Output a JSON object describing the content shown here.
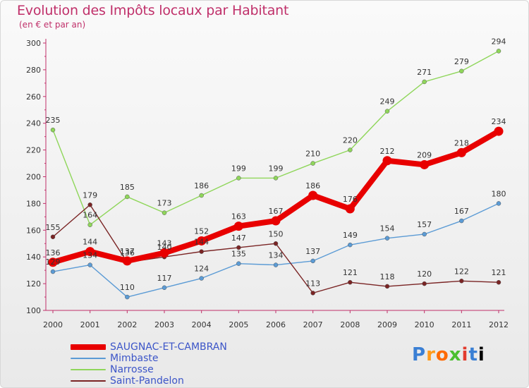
{
  "title": "Evolution des Impôts locaux par Habitant",
  "subtitle": "(en € et par an)",
  "logo": [
    "P",
    "r",
    "o",
    "x",
    "i",
    "t",
    "i"
  ],
  "chart_data": {
    "type": "line",
    "x": [
      "2000",
      "2001",
      "2002",
      "2003",
      "2004",
      "2005",
      "2006",
      "2007",
      "2008",
      "2009",
      "2010",
      "2011",
      "2012"
    ],
    "ylim": [
      100,
      300
    ],
    "yticks": [
      100,
      120,
      140,
      160,
      180,
      200,
      220,
      240,
      260,
      280,
      300
    ],
    "grid": false,
    "legend_position": "bottom-left",
    "series": [
      {
        "name": "Mimbaste",
        "color": "#5b9bd5",
        "values": [
          129,
          134,
          110,
          117,
          124,
          135,
          134,
          137,
          149,
          154,
          157,
          167,
          180
        ],
        "labels": [
          "129",
          "134",
          "110",
          "117",
          "124",
          "135",
          "134",
          "137",
          "149",
          "154",
          "157",
          "167",
          "180"
        ]
      },
      {
        "name": "Narrosse",
        "color": "#8fd65a",
        "values": [
          235,
          164,
          185,
          173,
          186,
          199,
          199,
          210,
          220,
          249,
          271,
          279,
          294
        ],
        "labels": [
          "235",
          "164",
          "185",
          "173",
          "186",
          "199",
          "199",
          "210",
          "220",
          "249",
          "271",
          "279",
          "294"
        ]
      },
      {
        "name": "Saint-Pandelon",
        "color": "#7a2424",
        "values": [
          155,
          179,
          136,
          140,
          144,
          147,
          150,
          113,
          121,
          118,
          120,
          122,
          121
        ],
        "labels": [
          "155",
          "179",
          "136",
          "140",
          "144",
          "147",
          "150",
          "113",
          "121",
          "118",
          "120",
          "122",
          "121"
        ]
      },
      {
        "name": "SAUGNAC-ET-CAMBRAN",
        "color": "#e80000",
        "values": [
          136,
          144,
          137,
          143,
          152,
          163,
          167,
          186,
          176,
          212,
          209,
          218,
          234
        ],
        "labels": [
          "136",
          "144",
          "137",
          "143",
          "152",
          "163",
          "167",
          "186",
          "176",
          "212",
          "209",
          "218",
          "234"
        ]
      }
    ]
  },
  "legend": [
    {
      "name": "SAUGNAC-ET-CAMBRAN",
      "color": "#e80000",
      "thick": 8
    },
    {
      "name": "Mimbaste",
      "color": "#5b9bd5",
      "thick": 2
    },
    {
      "name": "Narrosse",
      "color": "#8fd65a",
      "thick": 2
    },
    {
      "name": "Saint-Pandelon",
      "color": "#7a2424",
      "thick": 2
    }
  ]
}
